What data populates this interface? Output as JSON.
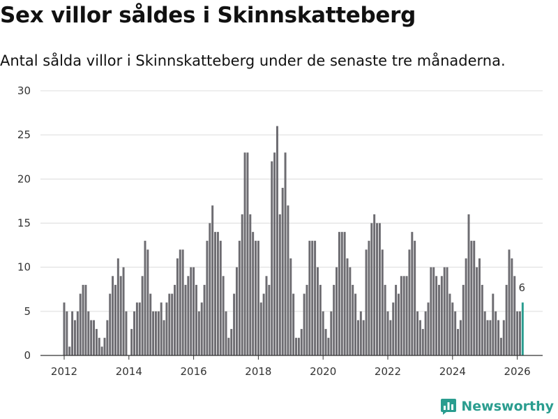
{
  "chart_data": {
    "type": "bar",
    "title": "Sex villor såldes i Skinnskatteberg",
    "subtitle": "Antal sålda villor i Skinnskatteberg under de senaste tre månaderna.",
    "xlabel": "",
    "ylabel": "",
    "ylim": [
      0,
      30
    ],
    "yticks": [
      0,
      5,
      10,
      15,
      20,
      25,
      30
    ],
    "xticks": [
      "2012",
      "2014",
      "2016",
      "2018",
      "2020",
      "2022",
      "2024",
      "2026"
    ],
    "start": {
      "year": 2012,
      "month": 1
    },
    "series": [
      {
        "name": "Antal sålda villor",
        "values": [
          6,
          5,
          1,
          5,
          4,
          5,
          7,
          8,
          8,
          5,
          4,
          4,
          3,
          2,
          1,
          2,
          4,
          7,
          9,
          8,
          11,
          9,
          10,
          5,
          0,
          3,
          5,
          6,
          6,
          9,
          13,
          12,
          7,
          5,
          5,
          5,
          6,
          4,
          6,
          7,
          7,
          8,
          11,
          12,
          12,
          8,
          9,
          10,
          10,
          8,
          5,
          6,
          8,
          13,
          15,
          17,
          14,
          14,
          13,
          9,
          5,
          2,
          3,
          7,
          10,
          13,
          16,
          23,
          23,
          16,
          14,
          13,
          13,
          6,
          7,
          9,
          8,
          22,
          23,
          26,
          16,
          19,
          23,
          17,
          11,
          7,
          2,
          2,
          3,
          7,
          8,
          13,
          13,
          13,
          10,
          8,
          5,
          3,
          2,
          5,
          8,
          10,
          14,
          14,
          14,
          11,
          10,
          8,
          7,
          4,
          5,
          4,
          12,
          13,
          15,
          16,
          15,
          15,
          12,
          8,
          5,
          4,
          6,
          8,
          7,
          9,
          9,
          9,
          12,
          14,
          13,
          5,
          4,
          3,
          5,
          6,
          10,
          10,
          9,
          8,
          9,
          10,
          10,
          7,
          6,
          5,
          3,
          4,
          8,
          11,
          16,
          13,
          13,
          10,
          11,
          8,
          5,
          4,
          4,
          7,
          5,
          4,
          2,
          4,
          8,
          12,
          11,
          9,
          5,
          5,
          6
        ]
      }
    ],
    "highlight": {
      "index": 170,
      "label": "6",
      "color": "#2a9d8f"
    },
    "bar_color": "#6d6c71"
  },
  "brand": {
    "name": "Newsworthy",
    "color": "#2a9d8f"
  }
}
